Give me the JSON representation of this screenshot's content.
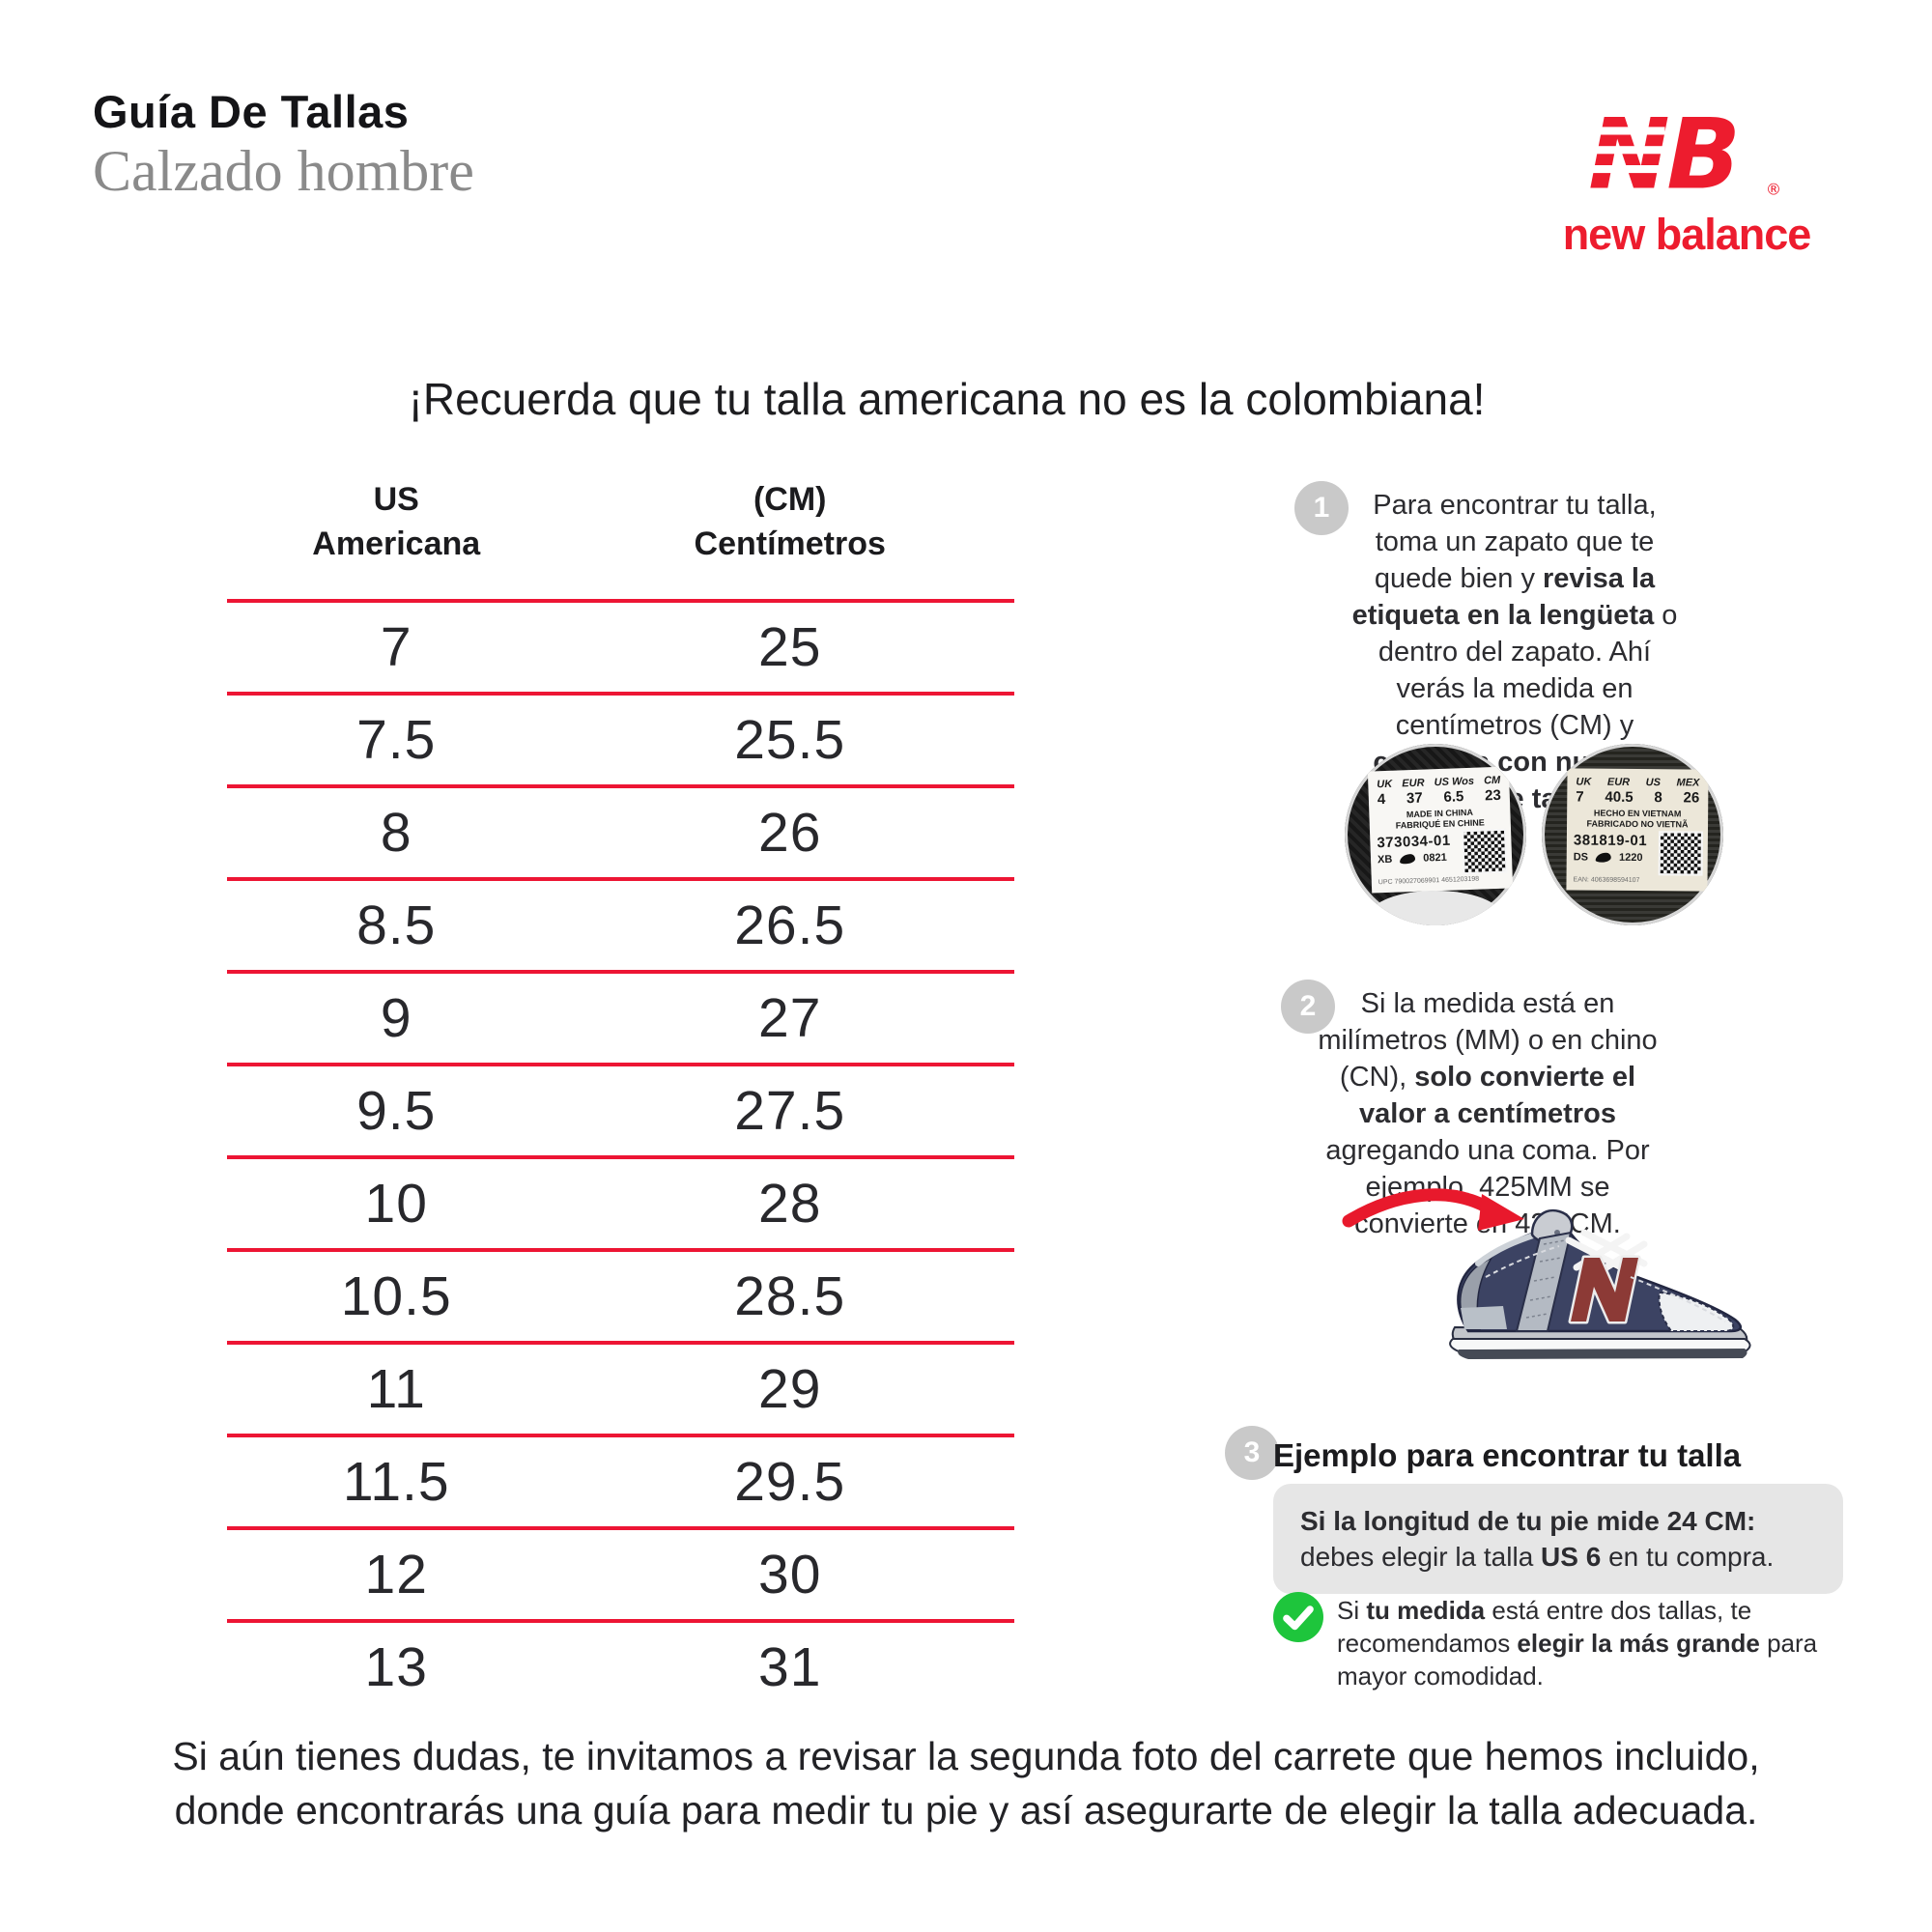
{
  "header": {
    "title": "Guía De Tallas",
    "subtitle": "Calzado hombre"
  },
  "brand": {
    "mark_n": "N",
    "mark_b": "B",
    "registered": "®",
    "name": "new balance",
    "red": "#ed1c2e"
  },
  "banner": {
    "text": "¡Recuerda que tu talla americana no es la colombiana!"
  },
  "chart_data": {
    "type": "table",
    "title": "Guía de tallas calzado hombre — conversión US a centímetros",
    "columns": [
      "US Americana",
      "(CM) Centímetros"
    ],
    "rows": [
      [
        "7",
        "25"
      ],
      [
        "7.5",
        "25.5"
      ],
      [
        "8",
        "26"
      ],
      [
        "8.5",
        "26.5"
      ],
      [
        "9",
        "27"
      ],
      [
        "9.5",
        "27.5"
      ],
      [
        "10",
        "28"
      ],
      [
        "10.5",
        "28.5"
      ],
      [
        "11",
        "29"
      ],
      [
        "11.5",
        "29.5"
      ],
      [
        "12",
        "30"
      ],
      [
        "13",
        "31"
      ]
    ],
    "separator_color": "#ed1534",
    "grid": "horizontal-lines-only"
  },
  "size_table": {
    "col1_line1": "US",
    "col1_line2": "Americana",
    "col2_line1": "(CM)",
    "col2_line2": "Centímetros"
  },
  "steps": {
    "step1": {
      "number": "1",
      "segments": [
        {
          "t": "Para encontrar tu talla, toma un zapato que te quede bien y "
        },
        {
          "t": "revisa la etiqueta en la lengüeta",
          "b": true
        },
        {
          "t": " o dentro del zapato. Ahí verás la medida en centímetros (CM) y "
        },
        {
          "t": "compara con nuestra tabla de tallas.",
          "b": true
        }
      ]
    },
    "step2": {
      "number": "2",
      "segments": [
        {
          "t": "Si la medida está en milímetros (MM) o en chino (CN), "
        },
        {
          "t": "solo convierte el valor a centímetros",
          "b": true
        },
        {
          "t": " agregando una coma. Por ejemplo, 425MM se convierte en 42.5CM."
        }
      ]
    },
    "step3": {
      "number": "3",
      "heading": "Ejemplo para encontrar tu talla",
      "example_segments": [
        {
          "t": "Si la longitud de tu pie mide 24 CM:",
          "b": true
        },
        {
          "t": " debes elegir la talla "
        },
        {
          "t": "US 6",
          "b": true
        },
        {
          "t": " en tu compra."
        }
      ],
      "tip_segments": [
        {
          "t": "Si "
        },
        {
          "t": "tu medida",
          "b": true
        },
        {
          "t": " está entre dos tallas, te recomendamos "
        },
        {
          "t": "elegir la más grande",
          "b": true
        },
        {
          "t": " para mayor comodidad."
        }
      ]
    }
  },
  "labels": [
    {
      "headers": [
        "UK",
        "EUR",
        "US Wos",
        "CM"
      ],
      "values": [
        "4",
        "37",
        "6.5",
        "23"
      ],
      "origin1": "MADE IN CHINA",
      "origin2": "FABRIQUÉ EN CHINE",
      "code": "373034-01",
      "factory": "XB",
      "date": "0821",
      "tiny": "UPC 790027069901 4651203198"
    },
    {
      "headers": [
        "UK",
        "EUR",
        "US",
        "MEX"
      ],
      "values": [
        "7",
        "40.5",
        "8",
        "26"
      ],
      "origin1": "HECHO EN VIETNAM",
      "origin2": "FABRICADO NO VIETNÃ",
      "code": "381819-01",
      "factory": "DS",
      "date": "1220",
      "tiny": "EAN: 4063698594107"
    }
  ],
  "footer": {
    "line1": "Si aún tienes dudas, te invitamos a revisar la segunda foto del carrete que hemos incluido,",
    "line2": "donde encontrarás una guía para medir tu pie y así asegurarte de elegir la talla adecuada."
  }
}
